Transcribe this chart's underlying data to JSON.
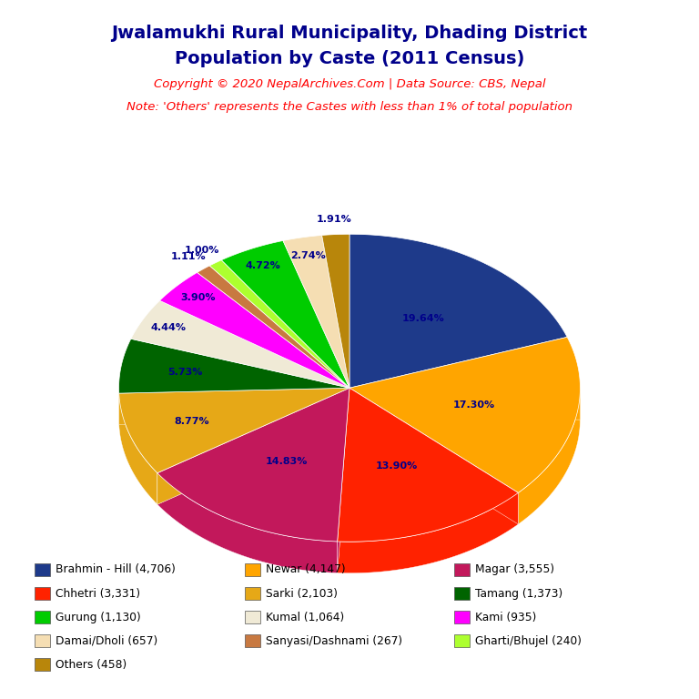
{
  "title_line1": "Jwalamukhi Rural Municipality, Dhading District",
  "title_line2": "Population by Caste (2011 Census)",
  "title_color": "#00008B",
  "copyright_text": "Copyright © 2020 NepalArchives.Com | Data Source: CBS, Nepal",
  "note_text": "Note: 'Others' represents the Castes with less than 1% of total population",
  "subtitle_color": "#FF0000",
  "background_color": "#FFFFFF",
  "slices": [
    {
      "label": "Brahmin - Hill (4,706)",
      "value": 4706,
      "pct": "19.64%",
      "color": "#1E3A8A"
    },
    {
      "label": "Newar (4,147)",
      "value": 4147,
      "pct": "17.30%",
      "color": "#FFA500"
    },
    {
      "label": "Chhetri (3,331)",
      "value": 3331,
      "pct": "13.90%",
      "color": "#FF2200"
    },
    {
      "label": "Magar (3,555)",
      "value": 3555,
      "pct": "14.83%",
      "color": "#C2185B"
    },
    {
      "label": "Sarki (2,103)",
      "value": 2103,
      "pct": "8.77%",
      "color": "#E6A817"
    },
    {
      "label": "Tamang (1,373)",
      "value": 1373,
      "pct": "5.73%",
      "color": "#006400"
    },
    {
      "label": "Kumal (1,064)",
      "value": 1064,
      "pct": "4.44%",
      "color": "#F0EAD6"
    },
    {
      "label": "Kami (935)",
      "value": 935,
      "pct": "3.90%",
      "color": "#FF00FF"
    },
    {
      "label": "Sanyasi/Dashnami (267)",
      "value": 267,
      "pct": "1.11%",
      "color": "#C87941"
    },
    {
      "label": "Gharti/Bhujel (240)",
      "value": 240,
      "pct": "1.00%",
      "color": "#ADFF2F"
    },
    {
      "label": "Gurung (1,130)",
      "value": 1130,
      "pct": "4.72%",
      "color": "#00CC00"
    },
    {
      "label": "Damai/Dholi (657)",
      "value": 657,
      "pct": "2.74%",
      "color": "#F5DEB3"
    },
    {
      "label": "Others (458)",
      "value": 458,
      "pct": "1.91%",
      "color": "#B8860B"
    }
  ],
  "legend_rows": [
    [
      {
        "label": "Brahmin - Hill (4,706)",
        "color": "#1E3A8A"
      },
      {
        "label": "Newar (4,147)",
        "color": "#FFA500"
      },
      {
        "label": "Magar (3,555)",
        "color": "#C2185B"
      }
    ],
    [
      {
        "label": "Chhetri (3,331)",
        "color": "#FF2200"
      },
      {
        "label": "Sarki (2,103)",
        "color": "#E6A817"
      },
      {
        "label": "Tamang (1,373)",
        "color": "#006400"
      }
    ],
    [
      {
        "label": "Gurung (1,130)",
        "color": "#00CC00"
      },
      {
        "label": "Kumal (1,064)",
        "color": "#F0EAD6"
      },
      {
        "label": "Kami (935)",
        "color": "#FF00FF"
      }
    ],
    [
      {
        "label": "Damai/Dholi (657)",
        "color": "#F5DEB3"
      },
      {
        "label": "Sanyasi/Dashnami (267)",
        "color": "#C87941"
      },
      {
        "label": "Gharti/Bhujel (240)",
        "color": "#ADFF2F"
      }
    ],
    [
      {
        "label": "Others (458)",
        "color": "#B8860B"
      },
      null,
      null
    ]
  ],
  "label_color": "#00008B",
  "startangle": 90
}
